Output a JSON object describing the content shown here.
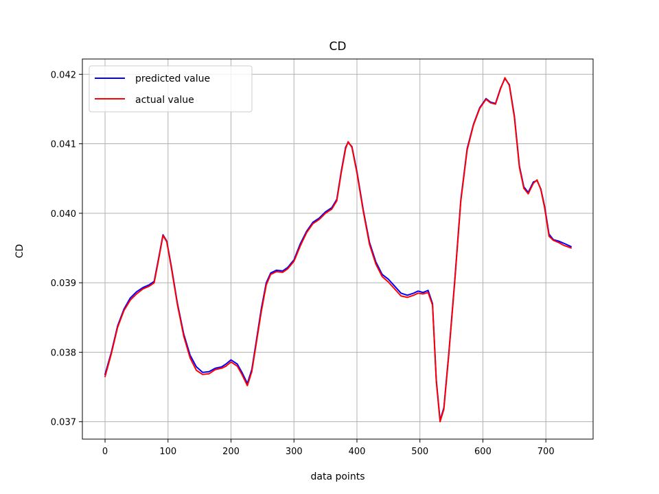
{
  "chart_data": {
    "type": "line",
    "title": "CD",
    "xlabel": "data points",
    "ylabel": "CD",
    "xlim": [
      -36,
      775
    ],
    "ylim": [
      0.03675,
      0.04222
    ],
    "xticks": [
      0,
      100,
      200,
      300,
      400,
      500,
      600,
      700
    ],
    "xtick_labels": [
      "0",
      "100",
      "200",
      "300",
      "400",
      "500",
      "600",
      "700"
    ],
    "yticks": [
      0.037,
      0.038,
      0.039,
      0.04,
      0.041,
      0.042
    ],
    "ytick_labels": [
      "0.037",
      "0.038",
      "0.039",
      "0.040",
      "0.041",
      "0.042"
    ],
    "grid": true,
    "legend_position": "upper-left",
    "series": [
      {
        "name": "predicted value",
        "color": "#0000ff",
        "points": [
          [
            0,
            0.03768
          ],
          [
            10,
            0.038
          ],
          [
            20,
            0.03838
          ],
          [
            30,
            0.03862
          ],
          [
            40,
            0.03878
          ],
          [
            50,
            0.03887
          ],
          [
            60,
            0.03893
          ],
          [
            70,
            0.03897
          ],
          [
            78,
            0.03902
          ],
          [
            85,
            0.03935
          ],
          [
            92,
            0.03969
          ],
          [
            98,
            0.0396
          ],
          [
            105,
            0.03925
          ],
          [
            115,
            0.0387
          ],
          [
            125,
            0.03826
          ],
          [
            135,
            0.03796
          ],
          [
            145,
            0.03779
          ],
          [
            155,
            0.03771
          ],
          [
            165,
            0.03772
          ],
          [
            175,
            0.03777
          ],
          [
            185,
            0.03779
          ],
          [
            192,
            0.03783
          ],
          [
            200,
            0.03789
          ],
          [
            210,
            0.03783
          ],
          [
            218,
            0.0377
          ],
          [
            226,
            0.03755
          ],
          [
            233,
            0.03775
          ],
          [
            240,
            0.03815
          ],
          [
            248,
            0.03862
          ],
          [
            256,
            0.039
          ],
          [
            263,
            0.03914
          ],
          [
            272,
            0.03918
          ],
          [
            282,
            0.03917
          ],
          [
            290,
            0.03922
          ],
          [
            300,
            0.03933
          ],
          [
            310,
            0.03956
          ],
          [
            320,
            0.03974
          ],
          [
            330,
            0.03987
          ],
          [
            340,
            0.03993
          ],
          [
            350,
            0.04002
          ],
          [
            360,
            0.04008
          ],
          [
            368,
            0.0402
          ],
          [
            375,
            0.0406
          ],
          [
            382,
            0.04095
          ],
          [
            386,
            0.04102
          ],
          [
            392,
            0.04096
          ],
          [
            400,
            0.0406
          ],
          [
            410,
            0.04005
          ],
          [
            420,
            0.03958
          ],
          [
            430,
            0.0393
          ],
          [
            440,
            0.03912
          ],
          [
            450,
            0.03905
          ],
          [
            460,
            0.03895
          ],
          [
            470,
            0.03885
          ],
          [
            480,
            0.03882
          ],
          [
            490,
            0.03885
          ],
          [
            497,
            0.03888
          ],
          [
            505,
            0.03886
          ],
          [
            513,
            0.03889
          ],
          [
            520,
            0.0387
          ],
          [
            526,
            0.0376
          ],
          [
            532,
            0.03702
          ],
          [
            538,
            0.0372
          ],
          [
            546,
            0.038
          ],
          [
            555,
            0.039
          ],
          [
            565,
            0.0402
          ],
          [
            575,
            0.04093
          ],
          [
            585,
            0.04128
          ],
          [
            595,
            0.04152
          ],
          [
            605,
            0.04165
          ],
          [
            612,
            0.0416
          ],
          [
            620,
            0.04158
          ],
          [
            628,
            0.0418
          ],
          [
            635,
            0.04194
          ],
          [
            642,
            0.04185
          ],
          [
            650,
            0.0414
          ],
          [
            658,
            0.04068
          ],
          [
            665,
            0.04038
          ],
          [
            672,
            0.0403
          ],
          [
            680,
            0.04045
          ],
          [
            686,
            0.04047
          ],
          [
            692,
            0.04035
          ],
          [
            698,
            0.0401
          ],
          [
            705,
            0.0397
          ],
          [
            712,
            0.03962
          ],
          [
            720,
            0.0396
          ],
          [
            728,
            0.03957
          ],
          [
            740,
            0.03952
          ]
        ]
      },
      {
        "name": "actual value",
        "color": "#ff0000",
        "points": [
          [
            0,
            0.03765
          ],
          [
            10,
            0.03798
          ],
          [
            20,
            0.03836
          ],
          [
            30,
            0.0386
          ],
          [
            40,
            0.03875
          ],
          [
            50,
            0.03884
          ],
          [
            60,
            0.03891
          ],
          [
            70,
            0.03895
          ],
          [
            78,
            0.039
          ],
          [
            85,
            0.03933
          ],
          [
            92,
            0.03968
          ],
          [
            98,
            0.03959
          ],
          [
            105,
            0.03923
          ],
          [
            115,
            0.03868
          ],
          [
            125,
            0.03823
          ],
          [
            135,
            0.03792
          ],
          [
            145,
            0.03774
          ],
          [
            155,
            0.03768
          ],
          [
            165,
            0.03769
          ],
          [
            175,
            0.03775
          ],
          [
            185,
            0.03777
          ],
          [
            192,
            0.0378
          ],
          [
            200,
            0.03786
          ],
          [
            210,
            0.0378
          ],
          [
            218,
            0.03767
          ],
          [
            226,
            0.03752
          ],
          [
            233,
            0.03772
          ],
          [
            240,
            0.03812
          ],
          [
            248,
            0.03858
          ],
          [
            256,
            0.03897
          ],
          [
            263,
            0.03912
          ],
          [
            272,
            0.03916
          ],
          [
            282,
            0.03915
          ],
          [
            290,
            0.0392
          ],
          [
            300,
            0.03931
          ],
          [
            310,
            0.03953
          ],
          [
            320,
            0.03972
          ],
          [
            330,
            0.03985
          ],
          [
            340,
            0.03991
          ],
          [
            350,
            0.04
          ],
          [
            360,
            0.04006
          ],
          [
            368,
            0.04018
          ],
          [
            375,
            0.04058
          ],
          [
            382,
            0.04093
          ],
          [
            386,
            0.04103
          ],
          [
            392,
            0.04095
          ],
          [
            400,
            0.04058
          ],
          [
            410,
            0.04003
          ],
          [
            420,
            0.03955
          ],
          [
            430,
            0.03927
          ],
          [
            440,
            0.03909
          ],
          [
            450,
            0.03901
          ],
          [
            460,
            0.03891
          ],
          [
            470,
            0.03881
          ],
          [
            480,
            0.03879
          ],
          [
            490,
            0.03882
          ],
          [
            497,
            0.03885
          ],
          [
            505,
            0.03884
          ],
          [
            513,
            0.03886
          ],
          [
            520,
            0.03868
          ],
          [
            526,
            0.03758
          ],
          [
            532,
            0.037
          ],
          [
            538,
            0.03718
          ],
          [
            546,
            0.03798
          ],
          [
            555,
            0.03898
          ],
          [
            565,
            0.04018
          ],
          [
            575,
            0.04091
          ],
          [
            585,
            0.04127
          ],
          [
            595,
            0.04151
          ],
          [
            605,
            0.04164
          ],
          [
            612,
            0.04159
          ],
          [
            620,
            0.04157
          ],
          [
            628,
            0.04179
          ],
          [
            635,
            0.04195
          ],
          [
            642,
            0.04184
          ],
          [
            650,
            0.04138
          ],
          [
            658,
            0.04066
          ],
          [
            665,
            0.04036
          ],
          [
            672,
            0.04028
          ],
          [
            680,
            0.04043
          ],
          [
            686,
            0.04048
          ],
          [
            692,
            0.04034
          ],
          [
            698,
            0.04008
          ],
          [
            705,
            0.03967
          ],
          [
            712,
            0.03961
          ],
          [
            720,
            0.03958
          ],
          [
            728,
            0.03954
          ],
          [
            740,
            0.0395
          ]
        ]
      }
    ]
  }
}
